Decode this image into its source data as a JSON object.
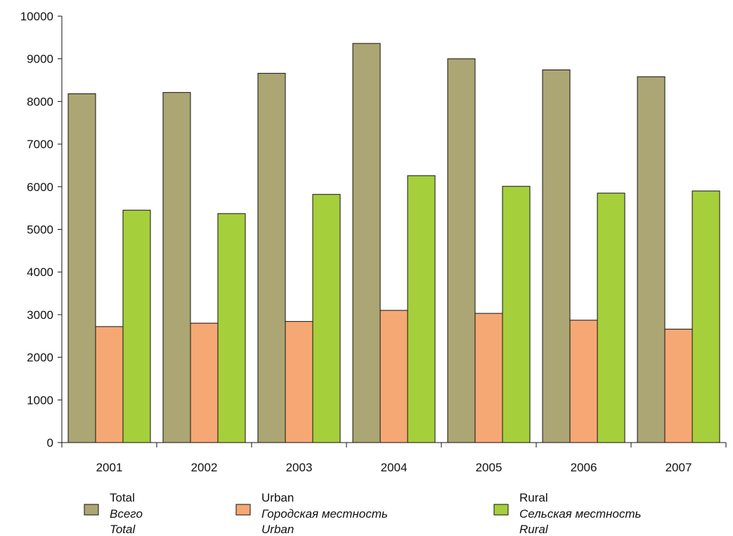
{
  "chart_data": {
    "type": "bar",
    "categories": [
      "2001",
      "2002",
      "2003",
      "2004",
      "2005",
      "2006",
      "2007"
    ],
    "series": [
      {
        "name": "Total",
        "name_ru": "Всего",
        "name_en": "Total",
        "color": "#aba673",
        "values": [
          8180,
          8210,
          8660,
          9360,
          9000,
          8740,
          8580
        ]
      },
      {
        "name": "Urban",
        "name_ru": "Городская местность",
        "name_en": "Urban",
        "color": "#f6a874",
        "values": [
          2720,
          2800,
          2840,
          3100,
          3030,
          2870,
          2660
        ]
      },
      {
        "name": "Rural",
        "name_ru": "Сельская местность",
        "name_en": "Rural",
        "color": "#a6cf3c",
        "values": [
          5450,
          5370,
          5820,
          6260,
          6010,
          5850,
          5900
        ]
      }
    ],
    "yticks": [
      "0",
      "1000",
      "2000",
      "3000",
      "4000",
      "5000",
      "6000",
      "7000",
      "8000",
      "9000",
      "10000"
    ],
    "ylim": [
      0,
      10000
    ],
    "grid": false,
    "legend_position": "bottom"
  }
}
